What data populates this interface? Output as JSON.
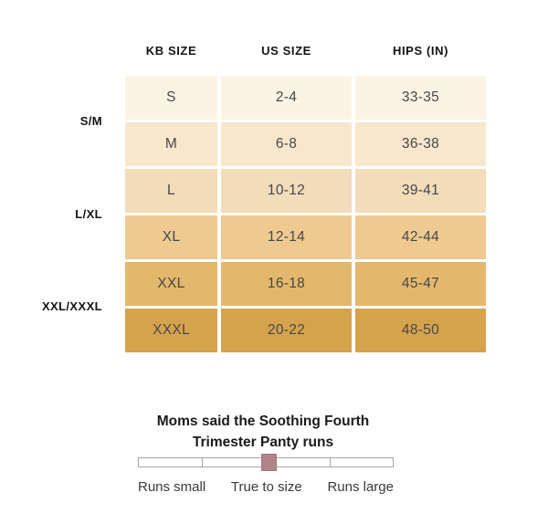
{
  "chart_data": {
    "type": "table",
    "columns": [
      "KB SIZE",
      "US SIZE",
      "HIPS (IN)"
    ],
    "groups": [
      "S/M",
      "L/XL",
      "XXL/XXXL"
    ],
    "rows": [
      {
        "kb": "S",
        "us": "2-4",
        "hips": "33-35"
      },
      {
        "kb": "M",
        "us": "6-8",
        "hips": "36-38"
      },
      {
        "kb": "L",
        "us": "10-12",
        "hips": "39-41"
      },
      {
        "kb": "XL",
        "us": "12-14",
        "hips": "42-44"
      },
      {
        "kb": "XXL",
        "us": "16-18",
        "hips": "45-47"
      },
      {
        "kb": "XXXL",
        "us": "20-22",
        "hips": "48-50"
      }
    ],
    "fit_scale": {
      "title_line1": "Moms said the Soothing Fourth",
      "title_line2": "Trimester Panty runs",
      "labels": [
        "Runs small",
        "True to size",
        "Runs large"
      ],
      "selected": "True to size",
      "handle_position_pct": 50
    }
  },
  "style": {
    "row_colors": [
      "#fbf4e5",
      "#f7e7cc",
      "#f2dcba",
      "#eeca91",
      "#e3b86d",
      "#d6a34d"
    ],
    "handle_color": "#b1848a"
  }
}
